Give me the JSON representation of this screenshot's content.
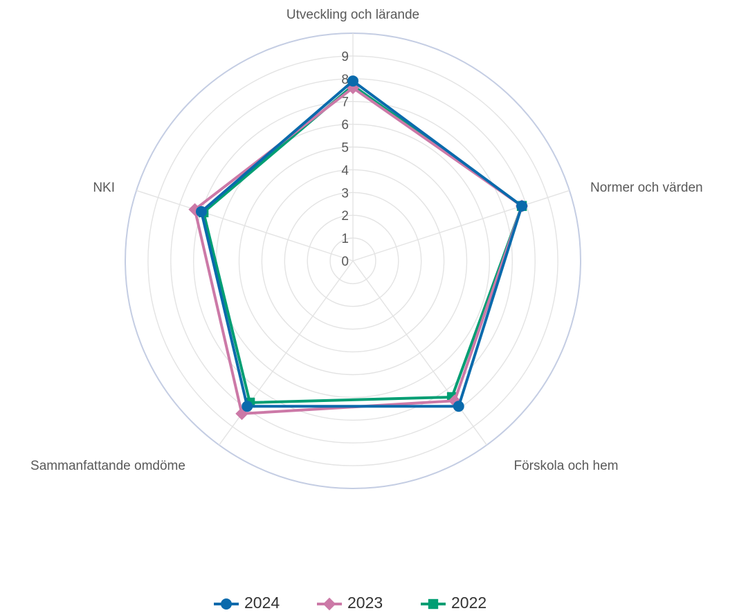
{
  "chart_data": {
    "type": "radar",
    "axes": [
      "Utveckling och lärande",
      "Normer och värden",
      "Förskola och hem",
      "Sammanfattande omdöme",
      "NKI"
    ],
    "rlim": [
      0,
      10
    ],
    "ticks": [
      "0",
      "1",
      "2",
      "3",
      "4",
      "5",
      "6",
      "7",
      "8",
      "9"
    ],
    "series": [
      {
        "name": "2024",
        "color": "#0a6aac",
        "marker": "circle",
        "values": [
          7.9,
          7.8,
          7.9,
          7.9,
          7.0
        ]
      },
      {
        "name": "2023",
        "color": "#cc79a7",
        "marker": "diamond",
        "values": [
          7.6,
          7.8,
          7.6,
          8.3,
          7.3
        ]
      },
      {
        "name": "2022",
        "color": "#009e73",
        "marker": "square",
        "values": [
          7.7,
          7.8,
          7.4,
          7.7,
          6.9
        ]
      }
    ],
    "grid": true,
    "legend": "bottom"
  }
}
